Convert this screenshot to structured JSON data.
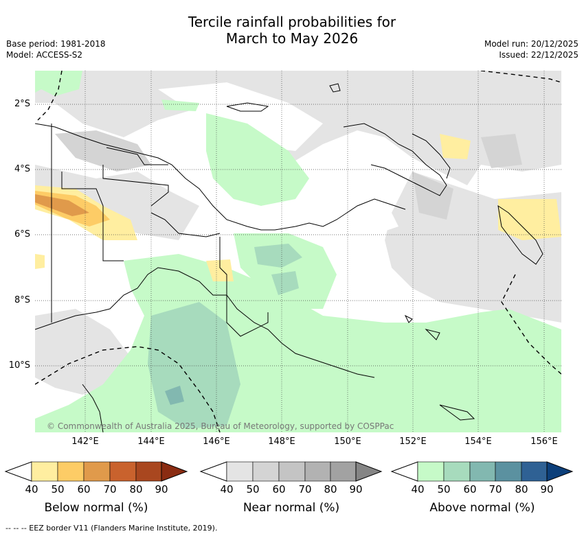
{
  "header": {
    "title_line1": "Tercile rainfall probabilities for",
    "title_line2": "March to May 2026",
    "base_period": "Base period: 1981-2018",
    "model": "Model: ACCESS-S2",
    "model_run": "Model run: 20/12/2025",
    "issued": "Issued: 22/12/2025"
  },
  "map": {
    "lat_labels": [
      "2°S",
      "4°S",
      "6°S",
      "8°S",
      "10°S"
    ],
    "lon_labels": [
      "142°E",
      "144°E",
      "146°E",
      "148°E",
      "150°E",
      "152°E",
      "154°E",
      "156°E"
    ],
    "copyright": "© Commonwealth of Australia 2025, Bureau of Meteorology, supported by COSPPac"
  },
  "colorbars": [
    {
      "title": "Below normal (%)",
      "ticks": [
        "40",
        "50",
        "60",
        "70",
        "80",
        "90"
      ],
      "colors": [
        "#ffeea0",
        "#fdcc66",
        "#e09a4b",
        "#c9622d",
        "#a9471f",
        "#8a2c12"
      ]
    },
    {
      "title": "Near normal (%)",
      "ticks": [
        "40",
        "50",
        "60",
        "70",
        "80",
        "90"
      ],
      "colors": [
        "#e4e4e4",
        "#d4d4d4",
        "#c4c4c4",
        "#b2b2b2",
        "#a2a2a2",
        "#858585"
      ]
    },
    {
      "title": "Above normal (%)",
      "ticks": [
        "40",
        "50",
        "60",
        "70",
        "80",
        "90"
      ],
      "colors": [
        "#c6fac8",
        "#a7dbbd",
        "#82b8b0",
        "#5b91a0",
        "#2f6194",
        "#0c3f7a"
      ]
    }
  ],
  "footer": {
    "legend": "--  --  -- EEZ border V11 (Flanders Marine Institute, 2019)."
  }
}
